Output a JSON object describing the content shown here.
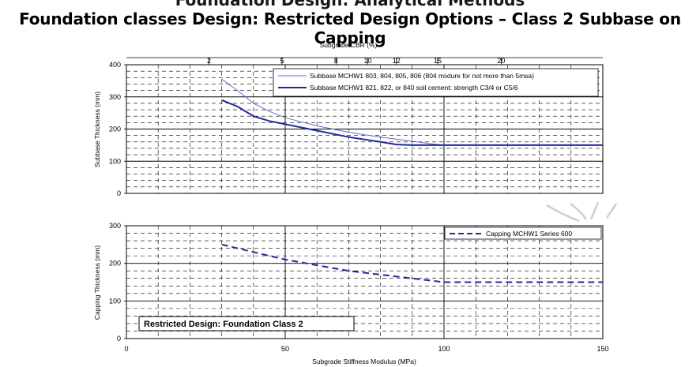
{
  "slide": {
    "title": "Foundation classes Design: Restricted Design Options – Class 2 Subbase on Capping",
    "cut_heading": "Foundation Design: Analytical Methods"
  },
  "chart_data": {
    "type": "line",
    "x": {
      "label": "Subgrade Stiffness Modulus (MPa)",
      "lim": [
        0,
        150
      ],
      "ticks": [
        0,
        50,
        100,
        150
      ]
    },
    "top_x": {
      "label": "Subgrade CBR (%)",
      "tick_labels": [
        "2",
        "5",
        "8",
        "10",
        "12",
        "15",
        "20"
      ],
      "tick_stiffness": [
        26,
        49,
        66,
        76,
        85,
        98,
        118
      ]
    },
    "panels": [
      {
        "ylabel": "Subbase Thickness (mm)",
        "ylim": [
          0,
          400
        ],
        "yticks": [
          0,
          100,
          200,
          300,
          400
        ],
        "grid": true,
        "legend_position": "top-right",
        "series": [
          {
            "name": "Subbase MCHW1 803, 804, 805, 806 (804 mixture for not more than 5msa)",
            "style": "thin-solid",
            "color": "#6a6ad8",
            "x": [
              30,
              35,
              40,
              45,
              50,
              60,
              70,
              80,
              90,
              95,
              100,
              110,
              120,
              130,
              140,
              150
            ],
            "y": [
              355,
              320,
              280,
              255,
              235,
              210,
              190,
              175,
              162,
              155,
              150,
              150,
              150,
              150,
              150,
              150
            ]
          },
          {
            "name": "Subbase MCHW1 821, 822, or 840 soil cement: strength C3/4 or C5/6",
            "style": "thick-solid",
            "color": "#1f2a9c",
            "x": [
              30,
              35,
              40,
              45,
              50,
              60,
              70,
              80,
              85,
              90,
              100,
              110,
              120,
              130,
              140,
              150
            ],
            "y": [
              290,
              270,
              240,
              225,
              215,
              195,
              175,
              160,
              152,
              150,
              150,
              150,
              150,
              150,
              150,
              150
            ]
          }
        ]
      },
      {
        "ylabel": "Capping Thickness (mm)",
        "ylim": [
          0,
          300
        ],
        "yticks": [
          0,
          100,
          200,
          300
        ],
        "grid": true,
        "legend_position": "top-right",
        "annotation": "Restricted Design: Foundation Class 2",
        "series": [
          {
            "name": "Capping MCHW1 Series 600",
            "style": "dashed",
            "color": "#1f2a9c",
            "x": [
              30,
              40,
              50,
              60,
              70,
              80,
              90,
              100,
              110,
              120,
              130,
              140,
              150
            ],
            "y": [
              250,
              230,
              210,
              195,
              180,
              170,
              160,
              150,
              150,
              150,
              150,
              150,
              150
            ]
          }
        ]
      }
    ]
  }
}
